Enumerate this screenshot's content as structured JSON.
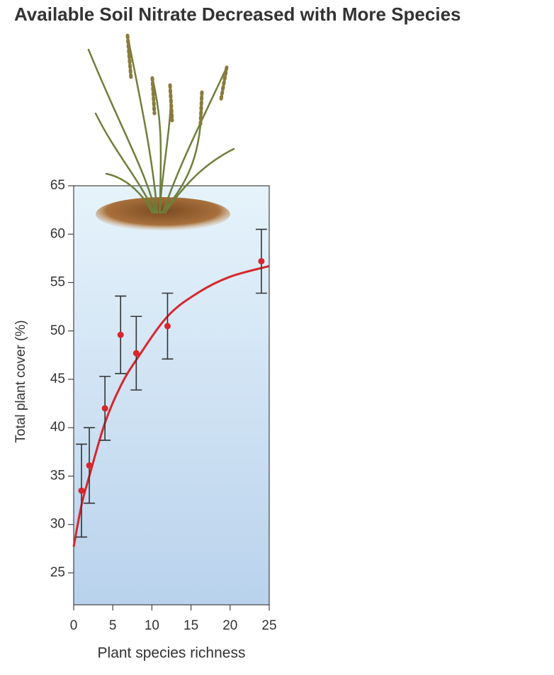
{
  "chart_data": {
    "type": "scatter",
    "title": "Available Soil Nitrate Decreased with More Species",
    "xlabel": "Plant species richness",
    "ylabel": "Total plant cover (%)",
    "xlim": [
      0,
      25
    ],
    "ylim": [
      21.7,
      65
    ],
    "xticks": [
      0,
      5,
      10,
      15,
      20,
      25
    ],
    "yticks": [
      25,
      30,
      35,
      40,
      45,
      50,
      55,
      60,
      65
    ],
    "series": [
      {
        "type": "scatter",
        "color": "#d7262e",
        "x": [
          1,
          2,
          4,
          6,
          8,
          12,
          24
        ],
        "values": [
          33.5,
          36.1,
          42.0,
          49.6,
          47.7,
          50.5,
          57.2
        ],
        "errors": [
          4.8,
          3.9,
          3.3,
          4.0,
          3.8,
          3.4,
          3.3
        ]
      },
      {
        "type": "line",
        "color": "#d7262e",
        "x": [
          0,
          1,
          2,
          4,
          6,
          8,
          12,
          16,
          20,
          25
        ],
        "values": [
          27.7,
          32.0,
          35.0,
          40.5,
          44.3,
          47.0,
          51.5,
          54.0,
          55.6,
          56.7
        ]
      }
    ]
  }
}
